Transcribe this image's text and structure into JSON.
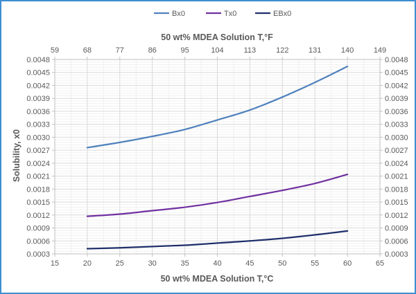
{
  "chart_data": {
    "type": "line",
    "title": "",
    "legend": {
      "position": "top",
      "entries": [
        "Bx0",
        "Tx0",
        "EBx0"
      ]
    },
    "xlabel": "50 wt% MDEA Solution T,°C",
    "x2label": "50 wt% MDEA Solution T,°F",
    "ylabel": "Solubility, x0",
    "xlim": [
      15,
      65
    ],
    "ylim": [
      0.0003,
      0.0048
    ],
    "x_ticks": [
      "15",
      "20",
      "25",
      "30",
      "35",
      "40",
      "45",
      "50",
      "55",
      "60",
      "65"
    ],
    "x2_ticks": [
      "59",
      "68",
      "77",
      "86",
      "95",
      "104",
      "113",
      "122",
      "131",
      "140",
      "149"
    ],
    "y_ticks": [
      "0.0003",
      "0.0006",
      "0.0009",
      "0.0012",
      "0.0015",
      "0.0018",
      "0.0021",
      "0.0024",
      "0.0027",
      "0.0030",
      "0.0033",
      "0.0036",
      "0.0039",
      "0.0042",
      "0.0045",
      "0.0048"
    ],
    "y2_ticks": [
      "0.0003",
      "0.0006",
      "0.0009",
      "0.0012",
      "0.0015",
      "0.0018",
      "0.0021",
      "0.0024",
      "0.0027",
      "0.0030",
      "0.0033",
      "0.0036",
      "0.0039",
      "0.0042",
      "0.0045",
      "0.0048"
    ],
    "grid": "major and minor",
    "x": [
      20,
      25,
      30,
      35,
      40,
      45,
      50,
      55,
      60
    ],
    "series": [
      {
        "name": "Bx0",
        "color": "#4f81bd",
        "values": [
          0.00276,
          0.00288,
          0.00302,
          0.00318,
          0.0034,
          0.00363,
          0.00393,
          0.00427,
          0.00464
        ]
      },
      {
        "name": "Tx0",
        "color": "#7030a0",
        "values": [
          0.00117,
          0.00122,
          0.0013,
          0.00138,
          0.00149,
          0.00163,
          0.00177,
          0.00193,
          0.00214
        ]
      },
      {
        "name": "EBx0",
        "color": "#1f2f6b",
        "values": [
          0.00042,
          0.00044,
          0.00047,
          0.0005,
          0.00055,
          0.0006,
          0.00066,
          0.00074,
          0.00083
        ]
      }
    ]
  }
}
